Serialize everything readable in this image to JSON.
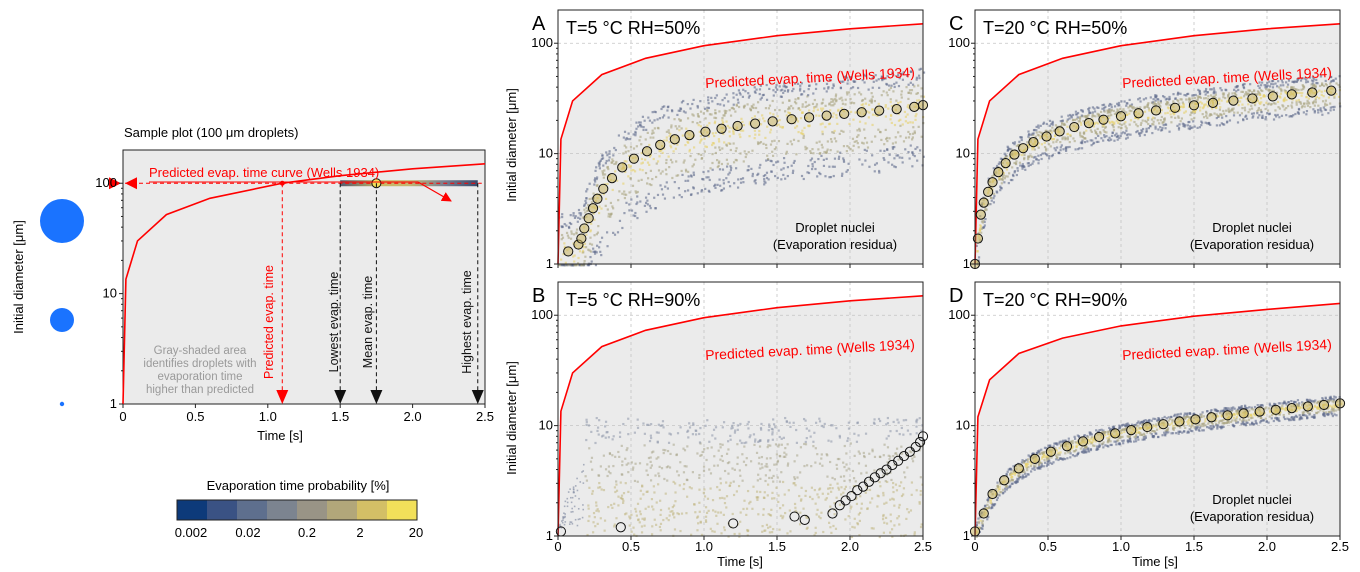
{
  "colors": {
    "plot_bg": "#ebebeb",
    "frame": "#222222",
    "grid": "#c4c4c4",
    "curve": "#ff0000",
    "droplet": "#1a73ff",
    "cloud_low": "#5b6a8a",
    "cloud_mid": "#9a9680",
    "cloud_high": "#f0dc6a",
    "marker_fill": "#c8b560",
    "colorbar": [
      "#0d3a7a",
      "#3a5284",
      "#5e6f8e",
      "#7c8490",
      "#999486",
      "#b2a77a",
      "#d3bf66",
      "#f2e05a"
    ]
  },
  "sample": {
    "title": "Sample plot (100 μm droplets)",
    "ylabel": "Initial diameter [μm]",
    "xlabel": "Time [s]",
    "xticks": [
      "0",
      "0.5",
      "1.0",
      "1.5",
      "2.0",
      "2.5"
    ],
    "yticks": [
      "1",
      "10",
      "100"
    ],
    "curve_label": "Predicted evap. time curve (Wells 1934)",
    "gray_note": [
      "Gray-shaded area",
      "identifies droplets with",
      "evaporation time",
      "higher than predicted"
    ],
    "predicted_label": "Predicted evap. time",
    "lowest_label": "Lowest evap. time",
    "mean_label": "Mean evap. time",
    "highest_label": "Highest evap. time",
    "diameter_um": 100,
    "predicted_time_s": 1.1,
    "lowest_time_s": 1.5,
    "mean_time_s": 1.75,
    "highest_time_s": 2.45,
    "legend_droplet_sizes_um": [
      100,
      10,
      1
    ]
  },
  "colorbar": {
    "title": "Evaporation time probability [%]",
    "ticks": [
      "0.002",
      "0.02",
      "0.2",
      "2",
      "20"
    ]
  },
  "panels": [
    {
      "letter": "A",
      "condition": "T=5 °C RH=50%",
      "curve_label": "Predicted evap. time (Wells 1934)",
      "nuclei_label": [
        "Droplet nuclei",
        "(Evaporation residua)"
      ]
    },
    {
      "letter": "C",
      "condition": "T=20 °C RH=50%",
      "curve_label": "Predicted evap. time (Wells 1934)",
      "nuclei_label": [
        "Droplet nuclei",
        "(Evaporation residua)"
      ]
    },
    {
      "letter": "B",
      "condition": "T=5 °C RH=90%",
      "curve_label": "Predicted evap. time (Wells 1934)",
      "nuclei_label": [
        "",
        ""
      ]
    },
    {
      "letter": "D",
      "condition": "T=20 °C RH=90%",
      "curve_label": "Predicted evap. time (Wells 1934)",
      "nuclei_label": [
        "Droplet nuclei",
        "(Evaporation residua)"
      ]
    }
  ],
  "axes": {
    "ylabel": "Initial diameter [μm]",
    "xlabel": "Time [s]",
    "xticks": [
      "0",
      "0.5",
      "1.0",
      "1.5",
      "2.0",
      "2.5"
    ],
    "yticks": [
      "1",
      "10",
      "100"
    ]
  },
  "chart_data": [
    {
      "type": "line",
      "title": "Sample plot (100 μm droplets)",
      "xlabel": "Time [s]",
      "ylabel": "Initial diameter [μm]",
      "xlim": [
        0,
        2.5
      ],
      "ylim": [
        1,
        200
      ],
      "yscale": "log",
      "grid": false,
      "series": [
        {
          "name": "Predicted evap. time curve (Wells 1934)",
          "x": [
            0,
            0.02,
            0.1,
            0.3,
            0.6,
            1.1,
            1.5,
            2.0,
            2.5
          ],
          "y": [
            1,
            13.5,
            30,
            52,
            73,
            100,
            117,
            135,
            150
          ]
        }
      ],
      "markers": {
        "predicted": 1.1,
        "lowest": 1.5,
        "mean": 1.75,
        "highest": 2.45,
        "diameter": 100
      }
    },
    {
      "type": "scatter",
      "title": "T=5 °C RH=50%",
      "xlabel": "",
      "ylabel": "Initial diameter [μm]",
      "xlim": [
        0,
        2.5
      ],
      "ylim": [
        1,
        200
      ],
      "yscale": "log",
      "grid": true,
      "curve": {
        "name": "Predicted evap. time (Wells 1934)",
        "x": [
          0,
          0.02,
          0.1,
          0.3,
          0.6,
          1.0,
          1.5,
          2.0,
          2.5
        ],
        "y": [
          1,
          13.5,
          30,
          52,
          73,
          95,
          117,
          135,
          150
        ]
      },
      "mean_points": {
        "x": [
          0.07,
          0.14,
          0.16,
          0.18,
          0.21,
          0.24,
          0.27,
          0.31,
          0.37,
          0.44,
          0.52,
          0.61,
          0.7,
          0.8,
          0.9,
          1.01,
          1.12,
          1.23,
          1.35,
          1.47,
          1.6,
          1.72,
          1.84,
          1.96,
          2.08,
          2.2,
          2.32,
          2.44,
          2.5
        ],
        "y": [
          1.3,
          1.5,
          1.7,
          2.1,
          2.6,
          3.2,
          3.9,
          4.8,
          6.0,
          7.5,
          9.0,
          10.5,
          12.0,
          13.5,
          14.7,
          15.8,
          16.8,
          17.8,
          18.7,
          19.6,
          20.5,
          21.3,
          22.1,
          22.9,
          23.7,
          24.5,
          25.3,
          26.5,
          27.5
        ]
      },
      "cloud": {
        "upper_edge_um_at_0.5s": 12,
        "upper_edge_um_at_2.5s": 33,
        "lower_edge_um": 1
      }
    },
    {
      "type": "scatter",
      "title": "T=20 °C RH=50%",
      "xlabel": "",
      "ylabel": "",
      "xlim": [
        0,
        2.5
      ],
      "ylim": [
        1,
        200
      ],
      "yscale": "log",
      "grid": true,
      "curve": {
        "name": "Predicted evap. time (Wells 1934)",
        "x": [
          0,
          0.02,
          0.1,
          0.3,
          0.6,
          1.0,
          1.5,
          2.0,
          2.5
        ],
        "y": [
          1,
          13.5,
          30,
          52,
          73,
          95,
          117,
          135,
          150
        ]
      },
      "mean_points": {
        "x": [
          0,
          0.02,
          0.04,
          0.06,
          0.09,
          0.12,
          0.16,
          0.21,
          0.27,
          0.33,
          0.4,
          0.49,
          0.58,
          0.68,
          0.78,
          0.88,
          1.0,
          1.12,
          1.24,
          1.37,
          1.5,
          1.63,
          1.77,
          1.9,
          2.04,
          2.17,
          2.31,
          2.44
        ],
        "y": [
          1,
          1.7,
          2.8,
          3.6,
          4.5,
          5.5,
          6.8,
          8.2,
          9.8,
          11.2,
          12.7,
          14.3,
          15.9,
          17.4,
          18.9,
          20.3,
          21.8,
          23.2,
          24.6,
          26.0,
          27.4,
          28.8,
          30.2,
          31.6,
          33.0,
          34.4,
          35.8,
          37.2
        ]
      },
      "cloud": {
        "upper_edge_um_at_2.5s": 40,
        "lower_edge_um": 4
      }
    },
    {
      "type": "scatter",
      "title": "T=5 °C RH=90%",
      "xlabel": "Time [s]",
      "ylabel": "Initial diameter [μm]",
      "xlim": [
        0,
        2.5
      ],
      "ylim": [
        1,
        200
      ],
      "yscale": "log",
      "grid": true,
      "curve": {
        "name": "Predicted evap. time (Wells 1934)",
        "x": [
          0,
          0.02,
          0.1,
          0.3,
          0.6,
          1.0,
          1.5,
          2.0,
          2.5
        ],
        "y": [
          1,
          13.5,
          30,
          52,
          73,
          95,
          117,
          135,
          150
        ]
      },
      "mean_points": {
        "x": [
          0.02,
          0.43,
          1.2,
          1.62,
          1.69,
          1.88,
          1.93,
          1.97,
          2.01,
          2.05,
          2.09,
          2.13,
          2.17,
          2.21,
          2.25,
          2.29,
          2.33,
          2.37,
          2.41,
          2.45,
          2.48,
          2.5
        ],
        "y": [
          1.1,
          1.2,
          1.3,
          1.5,
          1.4,
          1.6,
          1.9,
          2.1,
          2.3,
          2.6,
          2.8,
          3.1,
          3.4,
          3.7,
          4.0,
          4.4,
          4.8,
          5.3,
          5.8,
          6.4,
          7.1,
          8.0
        ]
      },
      "cloud": {
        "upper_edge_um": 12,
        "lower_edge_um": 1
      }
    },
    {
      "type": "scatter",
      "title": "T=20 °C RH=90%",
      "xlabel": "Time [s]",
      "ylabel": "",
      "xlim": [
        0,
        2.5
      ],
      "ylim": [
        1,
        200
      ],
      "yscale": "log",
      "grid": true,
      "curve": {
        "name": "Predicted evap. time (Wells 1934)",
        "x": [
          0,
          0.02,
          0.1,
          0.3,
          0.6,
          1.0,
          1.5,
          2.0,
          2.5
        ],
        "y": [
          1,
          12,
          26,
          45,
          62,
          80,
          98,
          113,
          128
        ]
      },
      "mean_points": {
        "x": [
          0,
          0.06,
          0.12,
          0.2,
          0.3,
          0.41,
          0.52,
          0.63,
          0.74,
          0.85,
          0.96,
          1.07,
          1.18,
          1.29,
          1.4,
          1.51,
          1.62,
          1.73,
          1.84,
          1.95,
          2.06,
          2.17,
          2.28,
          2.39,
          2.5
        ],
        "y": [
          1.1,
          1.6,
          2.4,
          3.2,
          4.1,
          5.0,
          5.8,
          6.5,
          7.2,
          7.9,
          8.5,
          9.1,
          9.7,
          10.3,
          10.9,
          11.4,
          11.9,
          12.4,
          12.9,
          13.4,
          13.9,
          14.4,
          14.9,
          15.4,
          15.9
        ]
      },
      "cloud": {
        "upper_edge_um_at_2.5s": 17,
        "lower_edge_um": 1
      }
    }
  ]
}
